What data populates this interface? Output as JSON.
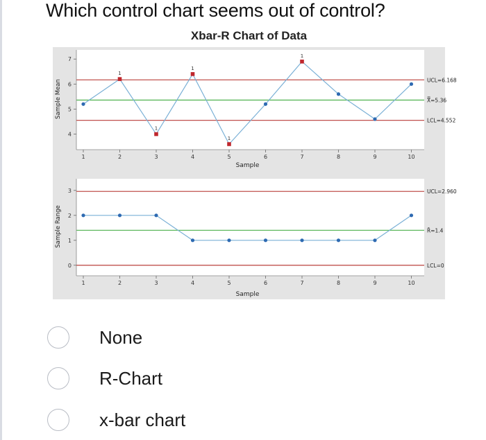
{
  "question": "Which control chart seems out of control?",
  "options": [
    {
      "label": "None"
    },
    {
      "label": "R-Chart"
    },
    {
      "label": "x-bar chart"
    }
  ],
  "chart_data": [
    {
      "type": "line",
      "title": "Xbar-R Chart of Data",
      "xlabel": "Sample",
      "ylabel": "Sample Mean",
      "x": [
        1,
        2,
        3,
        4,
        5,
        6,
        7,
        8,
        9,
        10
      ],
      "x_tick_labels": [
        "1",
        "2",
        "3",
        "4",
        "5",
        "6",
        "7",
        "8",
        "9",
        "10"
      ],
      "y_ticks": [
        4,
        5,
        6,
        7
      ],
      "y_tick_labels": [
        "4",
        "5",
        "6",
        "7"
      ],
      "ylim": [
        3.6,
        7.2
      ],
      "series": [
        {
          "values": [
            5.2,
            6.2,
            4.0,
            6.4,
            3.6,
            5.2,
            6.9,
            5.6,
            4.6,
            6.0
          ]
        }
      ],
      "out_of_control_points": [
        2,
        3,
        4,
        5,
        7
      ],
      "out_of_control_marker": "1",
      "reference_lines": [
        {
          "label": "UCL=6.168",
          "value": 6.168,
          "color": "#c0504d"
        },
        {
          "label": "X̿=5.36",
          "value": 5.36,
          "color": "#5cb85c"
        },
        {
          "label": "LCL=4.552",
          "value": 4.552,
          "color": "#c0504d"
        }
      ],
      "line_color": "#7ab0d6",
      "point_color": "#2e6ab2",
      "flag_color": "#c0272d",
      "grid": false
    },
    {
      "type": "line",
      "xlabel": "Sample",
      "ylabel": "Sample Range",
      "x": [
        1,
        2,
        3,
        4,
        5,
        6,
        7,
        8,
        9,
        10
      ],
      "x_tick_labels": [
        "1",
        "2",
        "3",
        "4",
        "5",
        "6",
        "7",
        "8",
        "9",
        "10"
      ],
      "y_ticks": [
        0,
        1,
        2,
        3
      ],
      "y_tick_labels": [
        "0",
        "1",
        "2",
        "3"
      ],
      "ylim": [
        -0.2,
        3.3
      ],
      "series": [
        {
          "values": [
            2,
            2,
            2,
            1,
            1,
            1,
            1,
            1,
            1,
            2
          ]
        }
      ],
      "reference_lines": [
        {
          "label": "UCL=2.960",
          "value": 2.96,
          "color": "#c0504d"
        },
        {
          "label": "R̄=1.4",
          "value": 1.4,
          "color": "#5cb85c"
        },
        {
          "label": "LCL=0",
          "value": 0,
          "color": "#c0504d"
        }
      ],
      "line_color": "#7ab0d6",
      "point_color": "#2e6ab2",
      "grid": false
    }
  ]
}
